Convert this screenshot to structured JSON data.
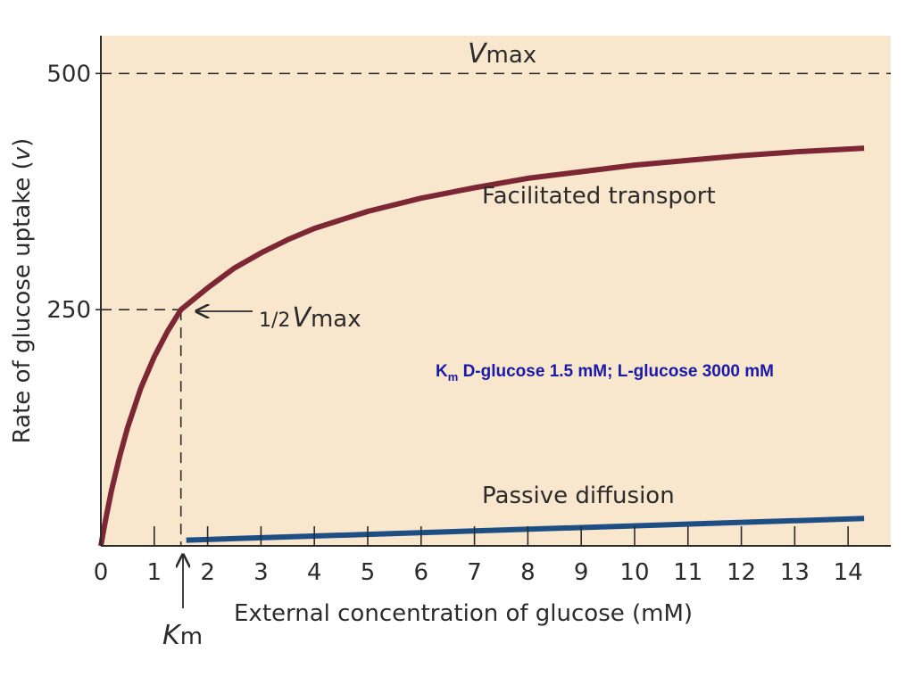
{
  "chart_data": {
    "type": "line",
    "title": "",
    "xlabel": "External concentration of glucose (mM)",
    "ylabel": "Rate of glucose uptake (v)",
    "ylabel_main": "Rate of glucose uptake (",
    "ylabel_var": "v",
    "ylabel_close": ")",
    "xlim": [
      0,
      14.8
    ],
    "ylim": [
      0,
      540
    ],
    "x_ticks": [
      0,
      1,
      2,
      3,
      4,
      5,
      6,
      7,
      8,
      9,
      10,
      11,
      12,
      13,
      14
    ],
    "x_tick_labels": [
      "0",
      "1",
      "2",
      "3",
      "4",
      "5",
      "6",
      "7",
      "8",
      "9",
      "10",
      "11",
      "12",
      "13",
      "14"
    ],
    "y_ticks": [
      250,
      500
    ],
    "y_tick_labels": [
      "250",
      "500"
    ],
    "grid": false,
    "series": [
      {
        "name": "Facilitated transport",
        "color": "#7d2634",
        "x": [
          0,
          0.05,
          0.1,
          0.2,
          0.35,
          0.5,
          0.75,
          1.0,
          1.25,
          1.5,
          2.0,
          2.5,
          3.0,
          3.5,
          4.0,
          5.0,
          6.0,
          7.0,
          8.0,
          9.0,
          10.0,
          11.0,
          12.0,
          13.0,
          14.0,
          14.3
        ],
        "y": [
          0,
          16,
          31,
          59,
          94,
          125,
          167,
          200,
          227,
          250,
          273,
          294,
          310,
          324,
          336,
          354,
          368,
          379,
          389,
          396,
          403,
          408,
          413,
          417,
          420,
          421
        ]
      },
      {
        "name": "Passive diffusion",
        "color": "#1e4f84",
        "x": [
          1.6,
          14.3
        ],
        "y": [
          6,
          29
        ]
      }
    ],
    "reference_lines": {
      "vmax": {
        "y": 500,
        "label_main": "V",
        "label_sub": "max"
      },
      "half_vmax": {
        "y": 250,
        "label_frac": "1/2",
        "label_main": "V",
        "label_sub": "max"
      },
      "km": {
        "x": 1.5,
        "label_main": "K",
        "label_sub": "m"
      }
    },
    "annotations": {
      "facilitated": "Facilitated transport",
      "passive": "Passive diffusion",
      "km_note": {
        "k": "K",
        "sub": "m",
        "text": " D-glucose 1.5 mM; L-glucose 3000 mM"
      }
    },
    "colors": {
      "background": "#f8e6cd",
      "axis": "#2b2b2b",
      "note": "#1a1aa8"
    }
  }
}
